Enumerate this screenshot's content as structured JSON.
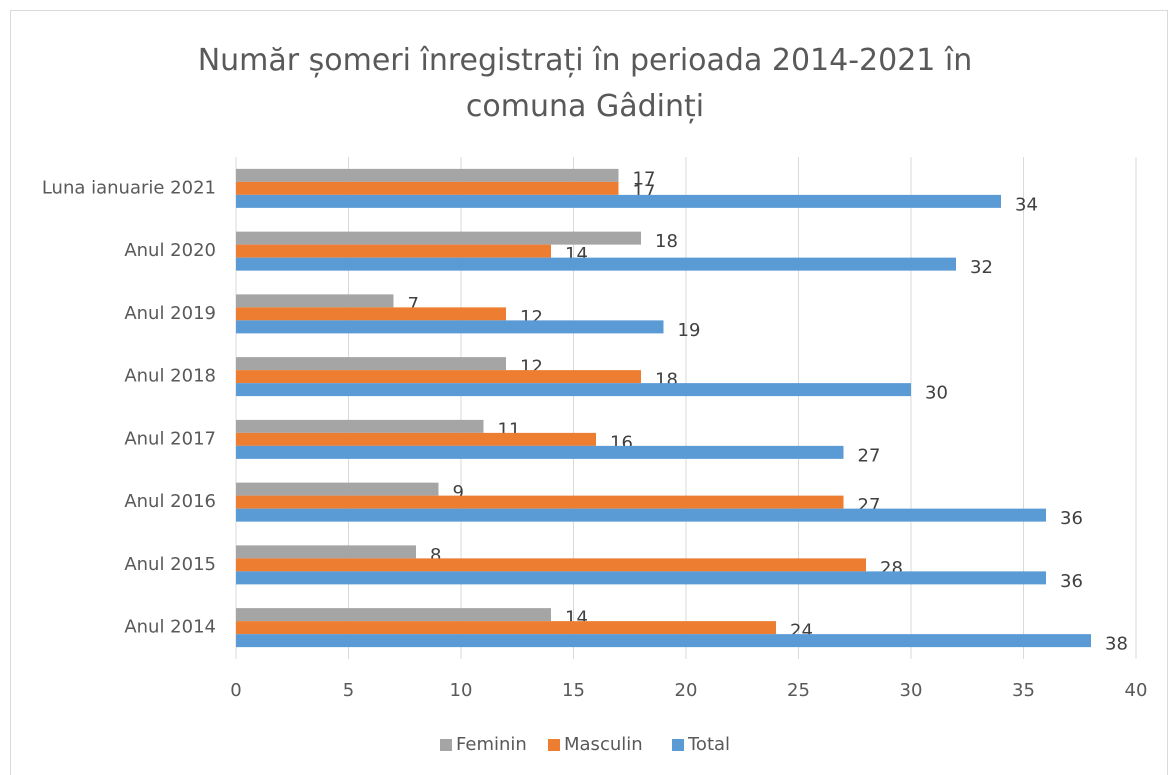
{
  "chart_data": {
    "type": "bar",
    "orientation": "horizontal",
    "title": "Număr șomeri înregistrați în perioada 2014-2021 în comuna Gâdinți",
    "categories": [
      "Luna ianuarie 2021",
      "Anul 2020",
      "Anul 2019",
      "Anul 2018",
      "Anul 2017",
      "Anul 2016",
      "Anul 2015",
      "Anul 2014"
    ],
    "series": [
      {
        "name": "Feminin",
        "color": "#a5a5a5",
        "values": [
          17,
          18,
          7,
          12,
          11,
          9,
          8,
          14
        ]
      },
      {
        "name": "Masculin",
        "color": "#ed7d31",
        "values": [
          17,
          14,
          12,
          18,
          16,
          27,
          28,
          24
        ]
      },
      {
        "name": "Total",
        "color": "#5b9bd5",
        "values": [
          34,
          32,
          19,
          30,
          27,
          36,
          36,
          38
        ]
      }
    ],
    "xlim": [
      0,
      40
    ],
    "xticks": [
      0,
      5,
      10,
      15,
      20,
      25,
      30,
      35,
      40
    ],
    "grid": true,
    "legend": "bottom"
  }
}
